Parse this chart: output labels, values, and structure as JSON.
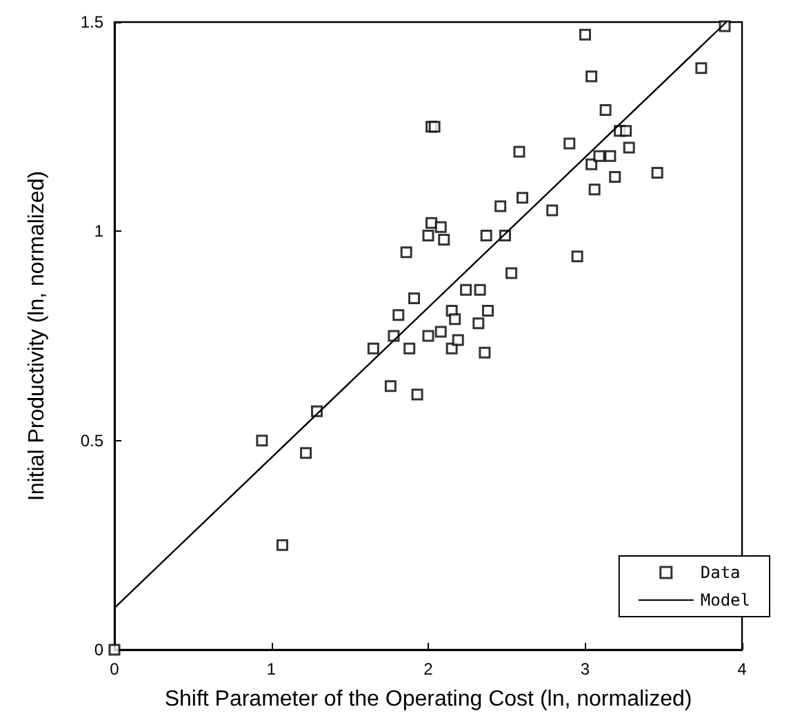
{
  "chart_data": {
    "type": "scatter",
    "xlabel": "Shift Parameter of the Operating Cost (ln, normalized)",
    "ylabel": "Initial Productivity (ln, normalized)",
    "xlim": [
      0,
      4
    ],
    "xticks": [
      0,
      1,
      2,
      3,
      4
    ],
    "ylim": [
      0,
      1.5
    ],
    "yticks": [
      0,
      0.5,
      1,
      1.5
    ],
    "grid": false,
    "legend": "bottom right",
    "series": [
      {
        "name": "Data",
        "color": "#000000",
        "marker": "square",
        "x": [
          0,
          0.94,
          1.07,
          1.22,
          1.29,
          1.65,
          1.76,
          1.78,
          1.81,
          1.86,
          1.88,
          1.91,
          1.93,
          2.0,
          2.0,
          2.02,
          2.02,
          2.04,
          2.08,
          2.08,
          2.1,
          2.15,
          2.15,
          2.17,
          2.19,
          2.24,
          2.32,
          2.33,
          2.36,
          2.37,
          2.38,
          2.46,
          2.49,
          2.53,
          2.58,
          2.6,
          2.79,
          2.9,
          2.95,
          3.0,
          3.04,
          3.04,
          3.06,
          3.09,
          3.13,
          3.16,
          3.19,
          3.22,
          3.26,
          3.28,
          3.46,
          3.74,
          3.89
        ],
        "values": [
          0,
          0.5,
          0.25,
          0.47,
          0.57,
          0.72,
          0.63,
          0.75,
          0.8,
          0.95,
          0.72,
          0.84,
          0.61,
          0.75,
          0.99,
          1.02,
          1.25,
          1.25,
          1.01,
          0.76,
          0.98,
          0.81,
          0.72,
          0.79,
          0.74,
          0.86,
          0.78,
          0.86,
          0.71,
          0.99,
          0.81,
          1.06,
          0.99,
          0.9,
          1.19,
          1.08,
          1.05,
          1.21,
          0.94,
          1.47,
          1.37,
          1.16,
          1.1,
          1.18,
          1.29,
          1.18,
          1.13,
          1.24,
          1.24,
          1.2,
          1.14,
          1.39,
          1.49
        ]
      },
      {
        "name": "Model",
        "type": "line",
        "color": "#000000",
        "marker": "none",
        "line_style": "solid",
        "x": [
          0,
          3.9
        ],
        "values": [
          0.1,
          1.5
        ]
      }
    ]
  }
}
